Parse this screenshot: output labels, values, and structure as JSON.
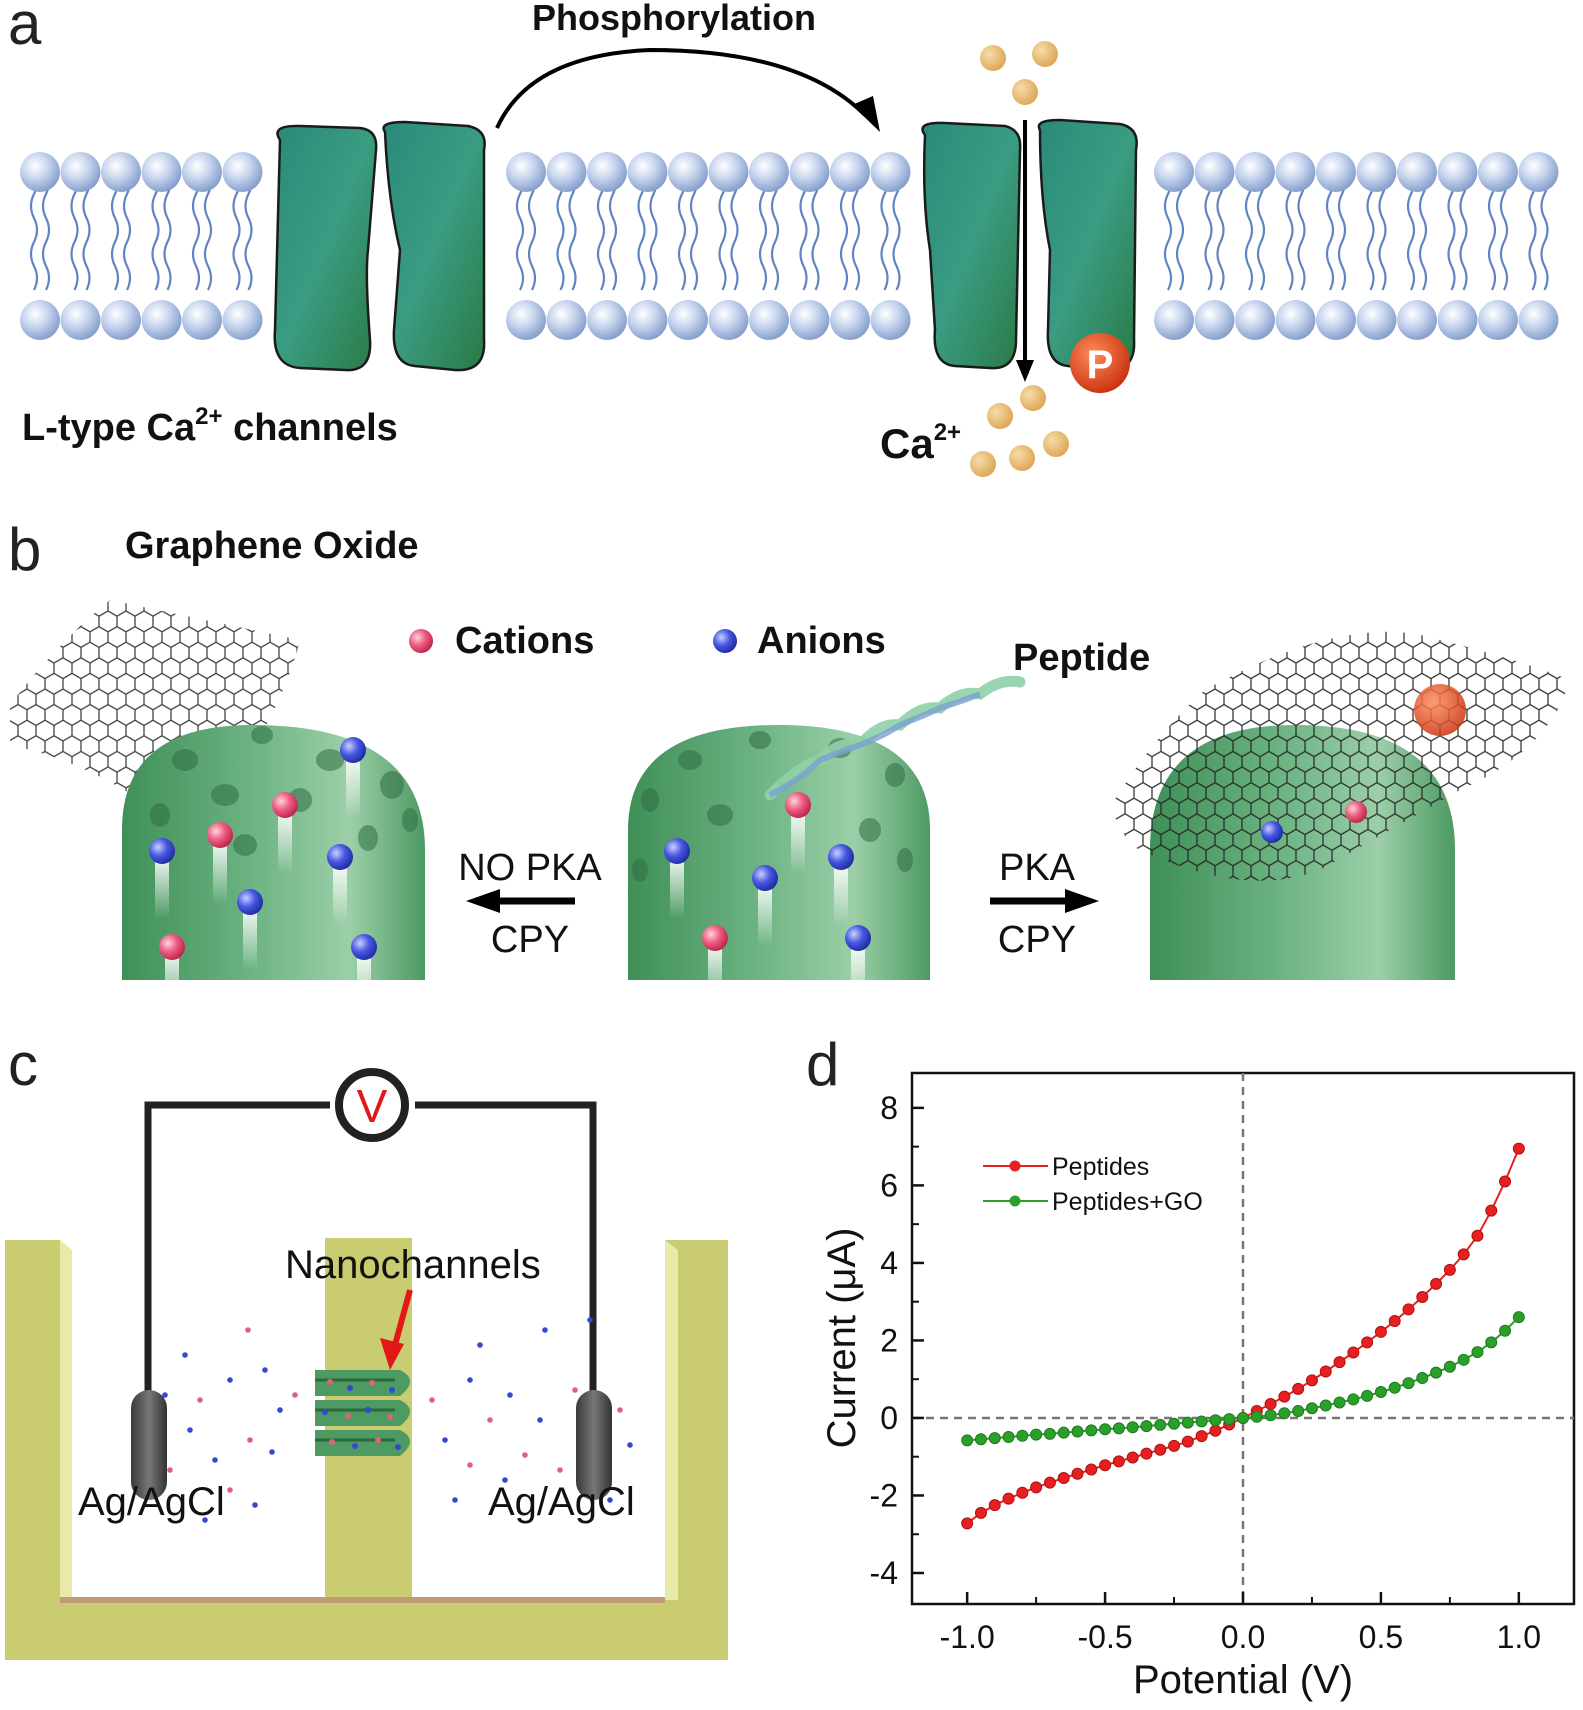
{
  "panels": {
    "a": {
      "letter": "a",
      "process_label": "Phosphorylation",
      "channel_label_main": "L-type Ca",
      "channel_label_sup": "2+",
      "channel_label_tail": " channels",
      "ion_label_main": "Ca",
      "ion_label_sup": "2+",
      "phospho_symbol": "P"
    },
    "b": {
      "letter": "b",
      "go_label": "Graphene Oxide",
      "cations_label": "Cations",
      "anions_label": "Anions",
      "peptide_label": "Peptide",
      "left_arrow_top": "NO PKA",
      "left_arrow_bottom": "CPY",
      "right_arrow_top": "PKA",
      "right_arrow_bottom": "CPY"
    },
    "c": {
      "letter": "c",
      "voltmeter_symbol": "V",
      "nanochannels_label": "Nanochannels",
      "left_electrode_label": "Ag/AgCl",
      "right_electrode_label": "Ag/AgCl"
    },
    "d": {
      "letter": "d"
    }
  },
  "colors": {
    "lipid_head": "#a9bfe2",
    "channel_green": "#2f8a64",
    "calcium_ion": "#e8b86a",
    "phospho_red": "#e04a1e",
    "cation": "#e8577a",
    "anion": "#3b4fd8",
    "chamber": "#c9cc70",
    "series_peptides": "#e62020",
    "series_peptides_go": "#2aa02a"
  },
  "chart_data": {
    "type": "line",
    "xlabel": "Potential (V)",
    "ylabel": "Current (μA)",
    "xlim": [
      -1.2,
      1.2
    ],
    "ylim": [
      -4.8,
      8.9
    ],
    "xticks": [
      -1.0,
      -0.5,
      0.0,
      0.5,
      1.0
    ],
    "xtick_labels": [
      "-1.0",
      "-0.5",
      "0.0",
      "0.5",
      "1.0"
    ],
    "yticks": [
      -4,
      -2,
      0,
      2,
      4,
      6,
      8
    ],
    "ytick_labels": [
      "-4",
      "-2",
      "0",
      "2",
      "4",
      "6",
      "8"
    ],
    "legend_position": "top-left",
    "reference_lines": "dashed lines at x=0 and y=0",
    "series": [
      {
        "name": "Peptides",
        "x": [
          -1.0,
          -0.95,
          -0.9,
          -0.85,
          -0.8,
          -0.75,
          -0.7,
          -0.65,
          -0.6,
          -0.55,
          -0.5,
          -0.45,
          -0.4,
          -0.35,
          -0.3,
          -0.25,
          -0.2,
          -0.15,
          -0.1,
          -0.05,
          0.0,
          0.05,
          0.1,
          0.15,
          0.2,
          0.25,
          0.3,
          0.35,
          0.4,
          0.45,
          0.5,
          0.55,
          0.6,
          0.65,
          0.7,
          0.75,
          0.8,
          0.85,
          0.9,
          0.95,
          1.0
        ],
        "y": [
          -2.72,
          -2.45,
          -2.25,
          -2.08,
          -1.93,
          -1.79,
          -1.67,
          -1.55,
          -1.44,
          -1.33,
          -1.22,
          -1.12,
          -1.02,
          -0.92,
          -0.82,
          -0.72,
          -0.61,
          -0.47,
          -0.33,
          -0.17,
          0.0,
          0.18,
          0.36,
          0.55,
          0.75,
          0.97,
          1.2,
          1.44,
          1.69,
          1.95,
          2.22,
          2.5,
          2.8,
          3.12,
          3.46,
          3.82,
          4.22,
          4.7,
          5.35,
          6.1,
          6.95
        ]
      },
      {
        "name": "Peptides+GO",
        "x": [
          -1.0,
          -0.95,
          -0.9,
          -0.85,
          -0.8,
          -0.75,
          -0.7,
          -0.65,
          -0.6,
          -0.55,
          -0.5,
          -0.45,
          -0.4,
          -0.35,
          -0.3,
          -0.25,
          -0.2,
          -0.15,
          -0.1,
          -0.05,
          0.0,
          0.05,
          0.1,
          0.15,
          0.2,
          0.25,
          0.3,
          0.35,
          0.4,
          0.45,
          0.5,
          0.55,
          0.6,
          0.65,
          0.7,
          0.75,
          0.8,
          0.85,
          0.9,
          0.95,
          1.0
        ],
        "y": [
          -0.58,
          -0.55,
          -0.52,
          -0.49,
          -0.46,
          -0.43,
          -0.41,
          -0.38,
          -0.35,
          -0.32,
          -0.29,
          -0.27,
          -0.24,
          -0.21,
          -0.18,
          -0.15,
          -0.12,
          -0.09,
          -0.06,
          -0.03,
          0.0,
          0.03,
          0.07,
          0.12,
          0.18,
          0.25,
          0.32,
          0.4,
          0.48,
          0.57,
          0.67,
          0.78,
          0.9,
          1.03,
          1.17,
          1.32,
          1.5,
          1.7,
          1.95,
          2.25,
          2.6
        ]
      }
    ]
  }
}
